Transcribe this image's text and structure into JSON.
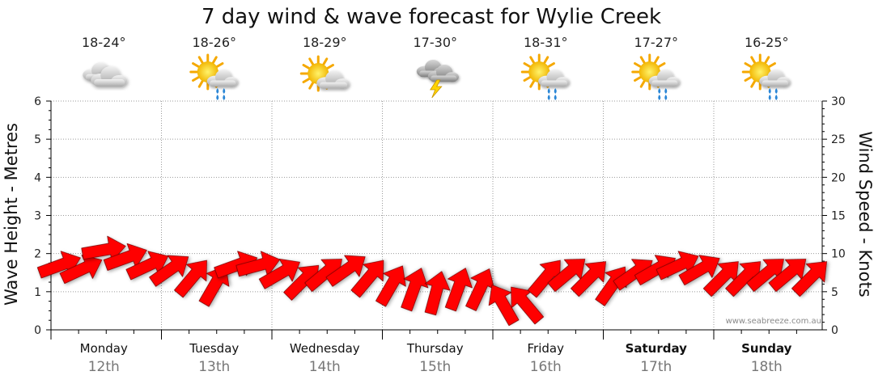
{
  "chart_data": {
    "type": "line",
    "title": "7 day wind & wave forecast for Wylie Creek",
    "ylabel_left": "Wave Height - Metres",
    "ylabel_right": "Wind Speed - Knots",
    "ylim_left": [
      0,
      6
    ],
    "ylim_right": [
      0,
      30
    ],
    "yticks_left": [
      "0",
      "1",
      "2",
      "3",
      "4",
      "5",
      "6"
    ],
    "yticks_right": [
      "0",
      "5",
      "10",
      "15",
      "20",
      "25",
      "30"
    ],
    "grid": true,
    "watermark": "www.seabreeze.com.au",
    "days": [
      {
        "name": "Monday",
        "date": "12th",
        "temp": "18-24°",
        "icon": "cloudy-icon",
        "bold": false
      },
      {
        "name": "Tuesday",
        "date": "13th",
        "temp": "18-26°",
        "icon": "sun-cloud-rain-icon",
        "bold": false
      },
      {
        "name": "Wednesday",
        "date": "14th",
        "temp": "18-29°",
        "icon": "sun-cloud-icon",
        "bold": false
      },
      {
        "name": "Thursday",
        "date": "15th",
        "temp": "17-30°",
        "icon": "storm-icon",
        "bold": false
      },
      {
        "name": "Friday",
        "date": "16th",
        "temp": "18-31°",
        "icon": "sun-cloud-rain-icon",
        "bold": false
      },
      {
        "name": "Saturday",
        "date": "17th",
        "temp": "17-27°",
        "icon": "sun-cloud-rain-icon",
        "bold": true
      },
      {
        "name": "Sunday",
        "date": "18th",
        "temp": "16-25°",
        "icon": "sun-cloud-rain-icon",
        "bold": true
      }
    ],
    "series": [
      {
        "name": "Wind Speed",
        "axis": "right",
        "color": "#ff0000",
        "time_days": [
          0,
          0.2,
          0.4,
          0.6,
          0.8,
          1.0,
          1.2,
          1.4,
          1.6,
          1.8,
          2.0,
          2.2,
          2.4,
          2.6,
          2.8,
          3.0,
          3.2,
          3.4,
          3.6,
          3.8,
          4.0,
          4.2,
          4.4,
          4.6,
          4.8,
          5.0,
          5.2,
          5.4,
          5.6,
          5.8,
          6.0,
          6.2,
          6.4,
          6.6,
          6.8
        ],
        "values": [
          8.5,
          8,
          10.5,
          9.5,
          8.5,
          8,
          7,
          6,
          8.5,
          8.5,
          7.5,
          6.5,
          7.5,
          8,
          7,
          6,
          5.5,
          5,
          5.5,
          5.5,
          3.5,
          3.5,
          7,
          7.5,
          7,
          6,
          7.5,
          8,
          8.5,
          8,
          7,
          7,
          7.5,
          7.5,
          7
        ],
        "direction_deg": [
          250,
          245,
          260,
          250,
          245,
          235,
          220,
          210,
          250,
          255,
          240,
          225,
          230,
          235,
          220,
          210,
          200,
          195,
          200,
          205,
          150,
          140,
          220,
          230,
          225,
          215,
          235,
          240,
          245,
          240,
          225,
          225,
          230,
          230,
          225
        ]
      }
    ]
  }
}
